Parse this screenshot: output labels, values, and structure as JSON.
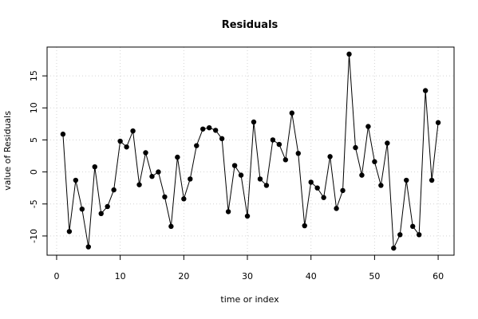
{
  "chart_data": {
    "type": "line",
    "title": "Residuals",
    "xlabel": "time or index",
    "ylabel": "value of Residuals",
    "xlim": [
      -1.5,
      62.5
    ],
    "ylim": [
      -13.0,
      19.5
    ],
    "x_ticks": [
      0,
      10,
      20,
      30,
      40,
      50,
      60
    ],
    "y_ticks": [
      -10,
      -5,
      0,
      5,
      10,
      15
    ],
    "grid": true,
    "markers": "filled-circle",
    "series": [
      {
        "x": [
          1,
          2,
          3,
          4,
          5,
          6,
          7,
          8,
          9,
          10,
          11,
          12,
          13,
          14,
          15,
          16,
          17,
          18,
          19,
          20,
          21,
          22,
          23,
          24,
          25,
          26,
          27,
          28,
          29,
          30,
          31,
          32,
          33,
          34,
          35,
          36,
          37,
          38,
          39,
          40,
          41,
          42,
          43,
          44,
          45,
          46,
          47,
          48,
          49,
          50,
          51,
          52,
          53,
          54,
          55,
          56,
          57,
          58,
          59,
          60
        ],
        "values": [
          5.9,
          -9.3,
          -1.3,
          -5.8,
          -11.7,
          0.8,
          -6.5,
          -5.4,
          -2.8,
          4.8,
          3.9,
          6.4,
          -2.0,
          3.0,
          -0.7,
          0.0,
          -3.9,
          -8.5,
          2.3,
          -4.2,
          -1.1,
          4.1,
          6.7,
          6.9,
          6.5,
          5.2,
          -6.2,
          1.0,
          -0.5,
          -6.9,
          7.8,
          -1.1,
          -2.1,
          5.0,
          4.3,
          1.9,
          9.2,
          2.9,
          -8.4,
          -1.6,
          -2.5,
          -4.0,
          2.4,
          -5.7,
          -2.9,
          18.4,
          3.8,
          -0.5,
          7.1,
          1.6,
          -2.1,
          4.5,
          -11.9,
          -9.8,
          -1.3,
          -8.5,
          -9.8,
          12.7,
          -1.3,
          7.7
        ]
      }
    ]
  }
}
